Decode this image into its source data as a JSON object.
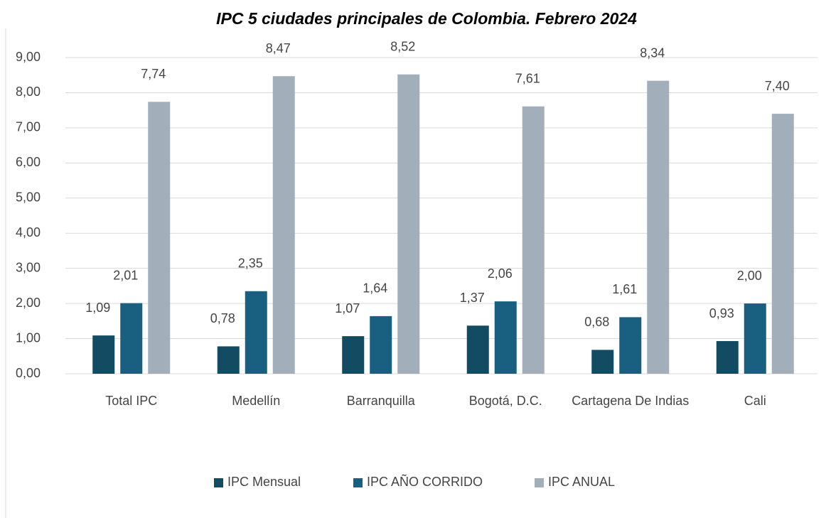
{
  "chart_data": {
    "type": "bar",
    "title": "IPC 5 ciudades principales de Colombia. Febrero 2024",
    "categories": [
      "Total IPC",
      "Medellín",
      "Barranquilla",
      "Bogotá, D.C.",
      "Cartagena De Indias",
      "Cali"
    ],
    "series": [
      {
        "name": "IPC Mensual",
        "color": "#134b63",
        "values": [
          1.09,
          0.78,
          1.07,
          1.37,
          0.68,
          0.93
        ],
        "value_labels": [
          "1,09",
          "0,78",
          "1,07",
          "1,37",
          "0,68",
          "0,93"
        ]
      },
      {
        "name": "IPC AÑO CORRIDO",
        "color": "#185f80",
        "values": [
          2.01,
          2.35,
          1.64,
          2.06,
          1.61,
          2.0
        ],
        "value_labels": [
          "2,01",
          "2,35",
          "1,64",
          "2,06",
          "1,61",
          "2,00"
        ]
      },
      {
        "name": "IPC ANUAL",
        "color": "#a2afba",
        "values": [
          7.74,
          8.47,
          8.52,
          7.61,
          8.34,
          7.4
        ],
        "value_labels": [
          "7,74",
          "8,47",
          "8,52",
          "7,61",
          "8,34",
          "7,40"
        ]
      }
    ],
    "ylim": [
      0,
      9
    ],
    "yticks": [
      {
        "value": 0,
        "label": "0,00"
      },
      {
        "value": 1,
        "label": "1,00"
      },
      {
        "value": 2,
        "label": "2,00"
      },
      {
        "value": 3,
        "label": "3,00"
      },
      {
        "value": 4,
        "label": "4,00"
      },
      {
        "value": 5,
        "label": "5,00"
      },
      {
        "value": 6,
        "label": "6,00"
      },
      {
        "value": 7,
        "label": "7,00"
      },
      {
        "value": 8,
        "label": "8,00"
      },
      {
        "value": 9,
        "label": "9,00"
      }
    ],
    "grid": true,
    "legend": "bottom"
  }
}
